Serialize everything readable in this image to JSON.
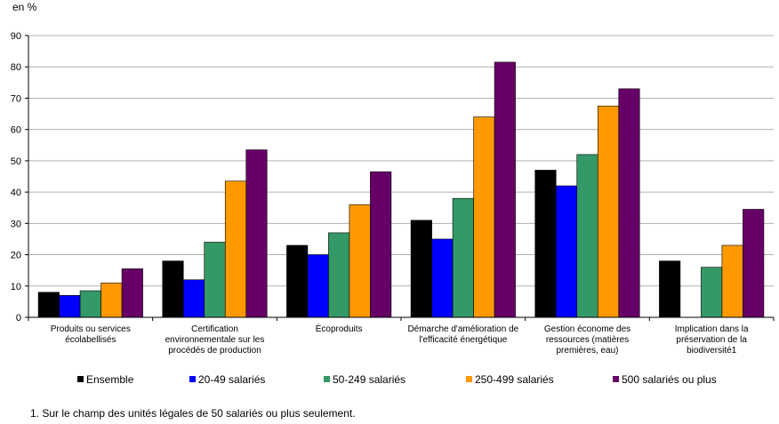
{
  "unit_label": "en %",
  "footnote": "1. Sur le champ des unités légales de 50 salariés ou plus seulement.",
  "chart_data": {
    "type": "bar",
    "title": "",
    "xlabel": "",
    "ylabel": "en %",
    "ylim": [
      0,
      90
    ],
    "yticks": [
      0,
      10,
      20,
      30,
      40,
      50,
      60,
      70,
      80,
      90
    ],
    "grid": true,
    "legend_position": "bottom",
    "categories": [
      [
        "Produits ou services",
        "écolabellisés"
      ],
      [
        "Certification",
        "environnementale sur les",
        "procédés de production"
      ],
      [
        "Écoproduits"
      ],
      [
        "Démarche d'amélioration de",
        "l'efficacité énergétique"
      ],
      [
        "Gestion économe des",
        "ressources (matières",
        "premières, eau)"
      ],
      [
        "Implication dans la",
        "préservation de la",
        "biodiversité1"
      ]
    ],
    "series": [
      {
        "name": "Ensemble",
        "color": "#000000",
        "values": [
          8,
          18,
          23,
          31,
          47,
          18
        ]
      },
      {
        "name": "20-49 salariés",
        "color": "#0000ff",
        "values": [
          7,
          12,
          20,
          25,
          42,
          null
        ]
      },
      {
        "name": "50-249 salariés",
        "color": "#339966",
        "values": [
          8.5,
          24,
          27,
          38,
          52,
          16
        ]
      },
      {
        "name": "250-499 salariés",
        "color": "#ff9900",
        "values": [
          11,
          43.5,
          36,
          64,
          67.5,
          23
        ]
      },
      {
        "name": "500 salariés ou plus",
        "color": "#660066",
        "values": [
          15.5,
          53.5,
          46.5,
          81.5,
          73,
          34.5
        ]
      }
    ]
  }
}
